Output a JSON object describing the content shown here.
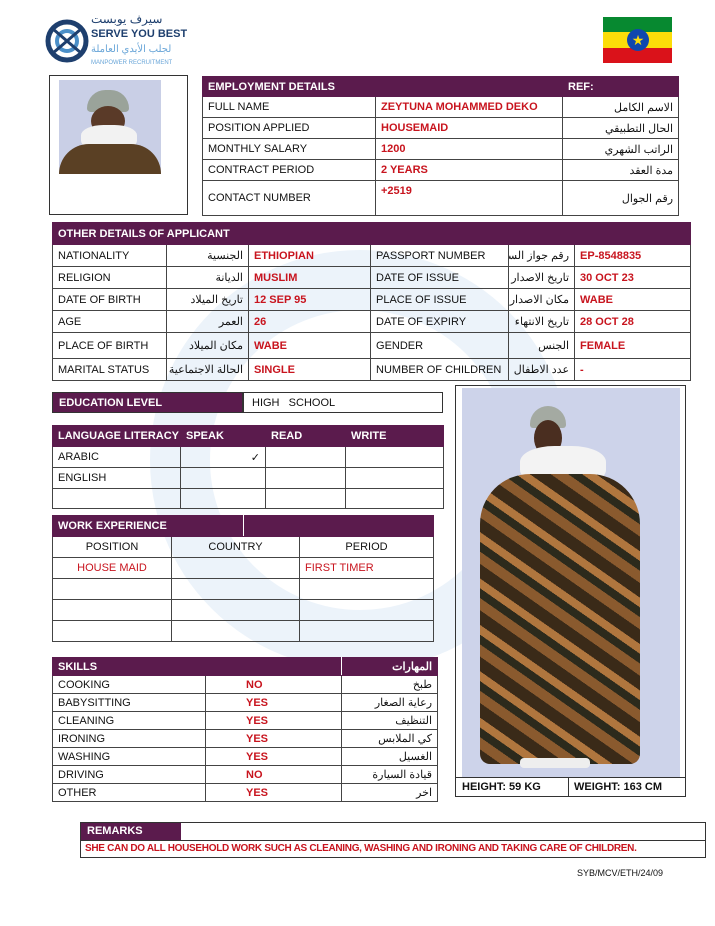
{
  "logo": {
    "arabic": "سيرف يوبست",
    "name": "SERVE YOU BEST",
    "arabic_sub": "لجلب الأيدي العاملة",
    "sub": "MANPOWER RECRUITMENT"
  },
  "flag": {
    "colors": [
      "#078930",
      "#fcdd09",
      "#da121a",
      "#0f47af"
    ]
  },
  "employment": {
    "title": "EMPLOYMENT DETAILS",
    "ref_label": "REF:",
    "rows": [
      {
        "label": "FULL NAME",
        "value": "ZEYTUNA  MOHAMMED  DEKO",
        "arabic": "الاسم الكامل"
      },
      {
        "label": "POSITION APPLIED",
        "value": "HOUSEMAID",
        "arabic": "الحال التطبيقي"
      },
      {
        "label": "MONTHLY SALARY",
        "value": "1200",
        "arabic": "الراتب الشهري"
      },
      {
        "label": "CONTRACT PERIOD",
        "value": "2 YEARS",
        "arabic": "مدة العقد"
      },
      {
        "label": "CONTACT NUMBER",
        "value": "+2519",
        "arabic": "رقم الجوال"
      }
    ]
  },
  "other": {
    "title": "OTHER DETAILS OF APPLICANT",
    "rows": [
      {
        "l1": "NATIONALITY",
        "a1": "الجنسية",
        "v1": "ETHIOPIAN",
        "l2": "PASSPORT NUMBER",
        "a2": "رقم جواز السفر",
        "v2": "EP-8548835"
      },
      {
        "l1": "RELIGION",
        "a1": "الديانة",
        "v1": "MUSLIM",
        "l2": "DATE OF ISSUE",
        "a2": "تاريخ الاصدار",
        "v2": "30 OCT  23"
      },
      {
        "l1": "DATE OF BIRTH",
        "a1": "تاريخ الميلاد",
        "v1": "12 SEP  95",
        "l2": "PLACE OF ISSUE",
        "a2": "مكان الاصدار",
        "v2": "WABE"
      },
      {
        "l1": "AGE",
        "a1": "العمر",
        "v1": "26",
        "l2": "DATE OF EXPIRY",
        "a2": "تاريخ الانتهاء",
        "v2": "28 OCT 28"
      },
      {
        "l1": "PLACE OF BIRTH",
        "a1": "مكان الميلاد",
        "v1": "WABE",
        "l2": "GENDER",
        "a2": "الجنس",
        "v2": "FEMALE"
      },
      {
        "l1": "MARITAL STATUS",
        "a1": "الحالة الاجتماعية",
        "v1": "SINGLE",
        "l2": "NUMBER OF CHILDREN",
        "a2": "عدد الاطفال",
        "v2": "-"
      }
    ]
  },
  "education": {
    "label": "EDUCATION LEVEL",
    "value": "HIGH   SCHOOL"
  },
  "language": {
    "headers": [
      "LANGUAGE LITERACY",
      "SPEAK",
      "READ",
      "WRITE"
    ],
    "rows": [
      {
        "lang": "ARABIC",
        "speak": "✓",
        "read": "",
        "write": ""
      },
      {
        "lang": "ENGLISH",
        "speak": "",
        "read": "",
        "write": ""
      }
    ]
  },
  "work": {
    "title": "WORK EXPERIENCE",
    "headers": [
      "POSITION",
      "COUNTRY",
      "PERIOD"
    ],
    "rows": [
      {
        "position": "HOUSE MAID",
        "country": "",
        "period": "FIRST TIMER"
      }
    ]
  },
  "skills": {
    "title": "SKILLS",
    "arabic_title": "المهارات",
    "rows": [
      {
        "skill": "COOKING",
        "value": "NO",
        "arabic": "طبخ"
      },
      {
        "skill": "BABYSITTING",
        "value": "YES",
        "arabic": "رعاية الصغار"
      },
      {
        "skill": "CLEANING",
        "value": "YES",
        "arabic": "التنظيف"
      },
      {
        "skill": "IRONING",
        "value": "YES",
        "arabic": "كي الملابس"
      },
      {
        "skill": "WASHING",
        "value": "YES",
        "arabic": "الغسيل"
      },
      {
        "skill": "DRIVING",
        "value": "NO",
        "arabic": "قيادة السيارة"
      },
      {
        "skill": "OTHER",
        "value": "YES",
        "arabic": "اخر"
      }
    ]
  },
  "measure": {
    "height": "HEIGHT: 59 KG",
    "weight": "WEIGHT: 163 CM"
  },
  "remarks": {
    "label": "REMARKS",
    "text": "SHE CAN DO ALL HOUSEHOLD WORK SUCH AS CLEANING, WASHING AND IRONING AND TAKING CARE OF CHILDREN."
  },
  "footer_ref": "SYB/MCV/ETH/24/09"
}
